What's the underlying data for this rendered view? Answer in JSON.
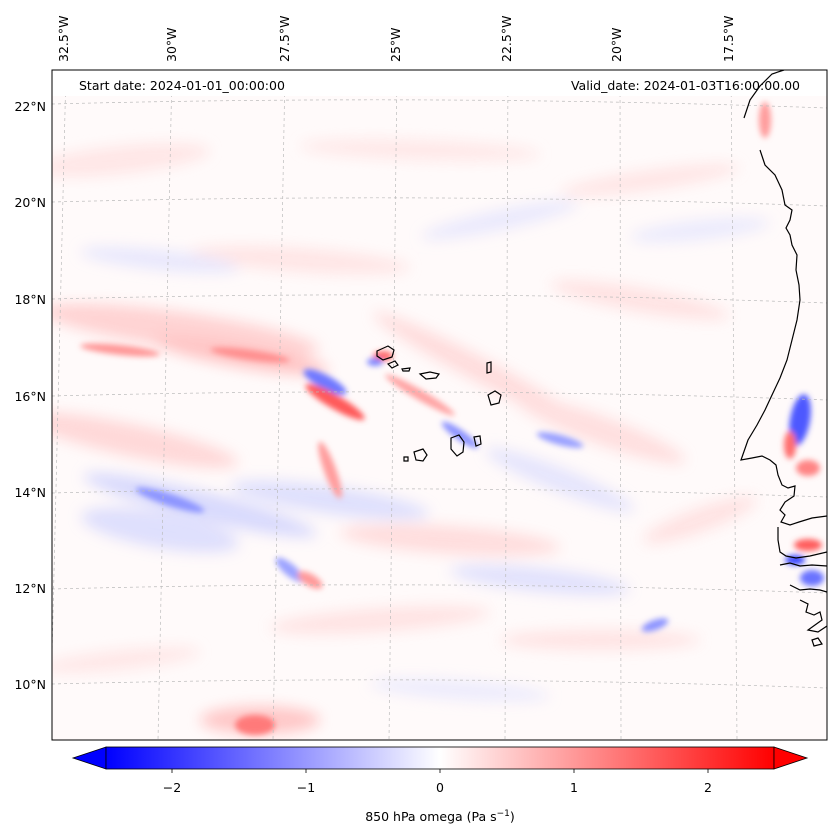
{
  "header": {
    "start_date": "Start date: 2024-01-01_00:00:00",
    "valid_date": "Valid_date: 2024-01-03T16:00:00.00"
  },
  "axes": {
    "lon_labels": [
      "32.5°W",
      "30°W",
      "27.5°W",
      "25°W",
      "22.5°W",
      "20°W",
      "17.5°W"
    ],
    "lat_labels": [
      "22°N",
      "20°N",
      "18°N",
      "16°N",
      "14°N",
      "12°N",
      "10°N"
    ]
  },
  "colorbar": {
    "ticks": [
      "−2",
      "−1",
      "0",
      "1",
      "2"
    ],
    "label_main": "850 hPa omega (Pa s",
    "label_exp": "−1",
    "label_end": ")",
    "range": [
      -2.6,
      2.6
    ],
    "min_color": "#0000ff",
    "mid_color": "#ffffff",
    "max_color": "#ff0000",
    "extend": "both"
  },
  "map": {
    "edge_color": "#000000",
    "grid_color": "#bbbbbb",
    "coast_color": "#000000"
  }
}
